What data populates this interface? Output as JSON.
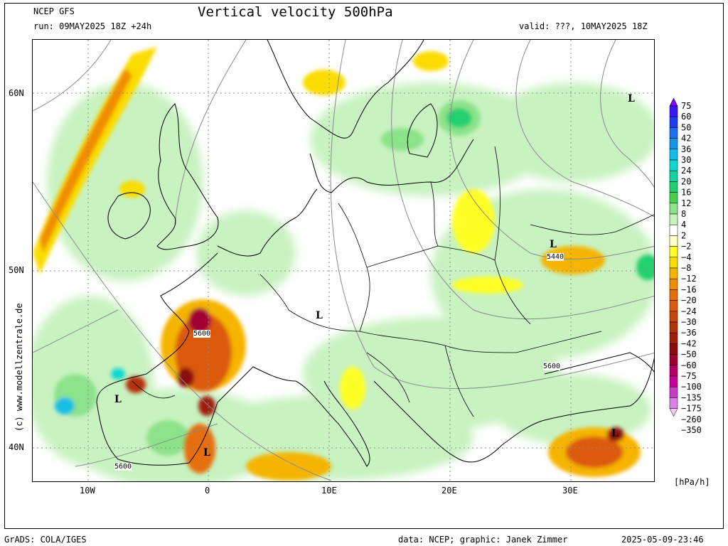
{
  "header": {
    "model": "NCEP GFS",
    "title": "Vertical velocity 500hPa",
    "run": "run: 09MAY2025 18Z +24h",
    "valid": "valid: ???, 10MAY2025 18Z"
  },
  "axes": {
    "lat_labels": [
      "60N",
      "50N",
      "40N"
    ],
    "lon_labels": [
      "10W",
      "0",
      "10E",
      "20E",
      "30E"
    ]
  },
  "map_labels": {
    "lows": [
      "L",
      "L",
      "L",
      "L",
      "L",
      "L"
    ],
    "isohypses": [
      "5440",
      "5600",
      "5600",
      "5600"
    ]
  },
  "legend": {
    "units": "[hPa/h]",
    "levels": [
      "75",
      "60",
      "50",
      "42",
      "36",
      "30",
      "24",
      "20",
      "16",
      "12",
      "8",
      "4",
      "2",
      "−2",
      "−4",
      "−8",
      "−12",
      "−16",
      "−20",
      "−24",
      "−30",
      "−36",
      "−42",
      "−50",
      "−60",
      "−75",
      "−100",
      "−135",
      "−175",
      "−260",
      "−350"
    ],
    "colors": [
      "#8000ff",
      "#3a17f5",
      "#1e3cf5",
      "#1e6cf0",
      "#1496e6",
      "#12bee6",
      "#10d8d0",
      "#16d2a0",
      "#20d070",
      "#46d050",
      "#8ce28a",
      "#c8f2c0",
      "#ffffff",
      "#fefec8",
      "#ffff28",
      "#fadc00",
      "#f5b400",
      "#f08c00",
      "#e66e0a",
      "#dc5a0a",
      "#c8460a",
      "#b4320a",
      "#a01e0a",
      "#8c0a0a",
      "#a00030",
      "#b40064",
      "#c8009b",
      "#c83cc8",
      "#dc82e6",
      "#f0c8f5"
    ]
  },
  "footer": {
    "left": "GrADS: COLA/IGES",
    "center": "data: NCEP; graphic: Janek Zimmer",
    "right": "2025-05-09-23:46"
  },
  "copyright": "(c) www.modellzentrale.de"
}
